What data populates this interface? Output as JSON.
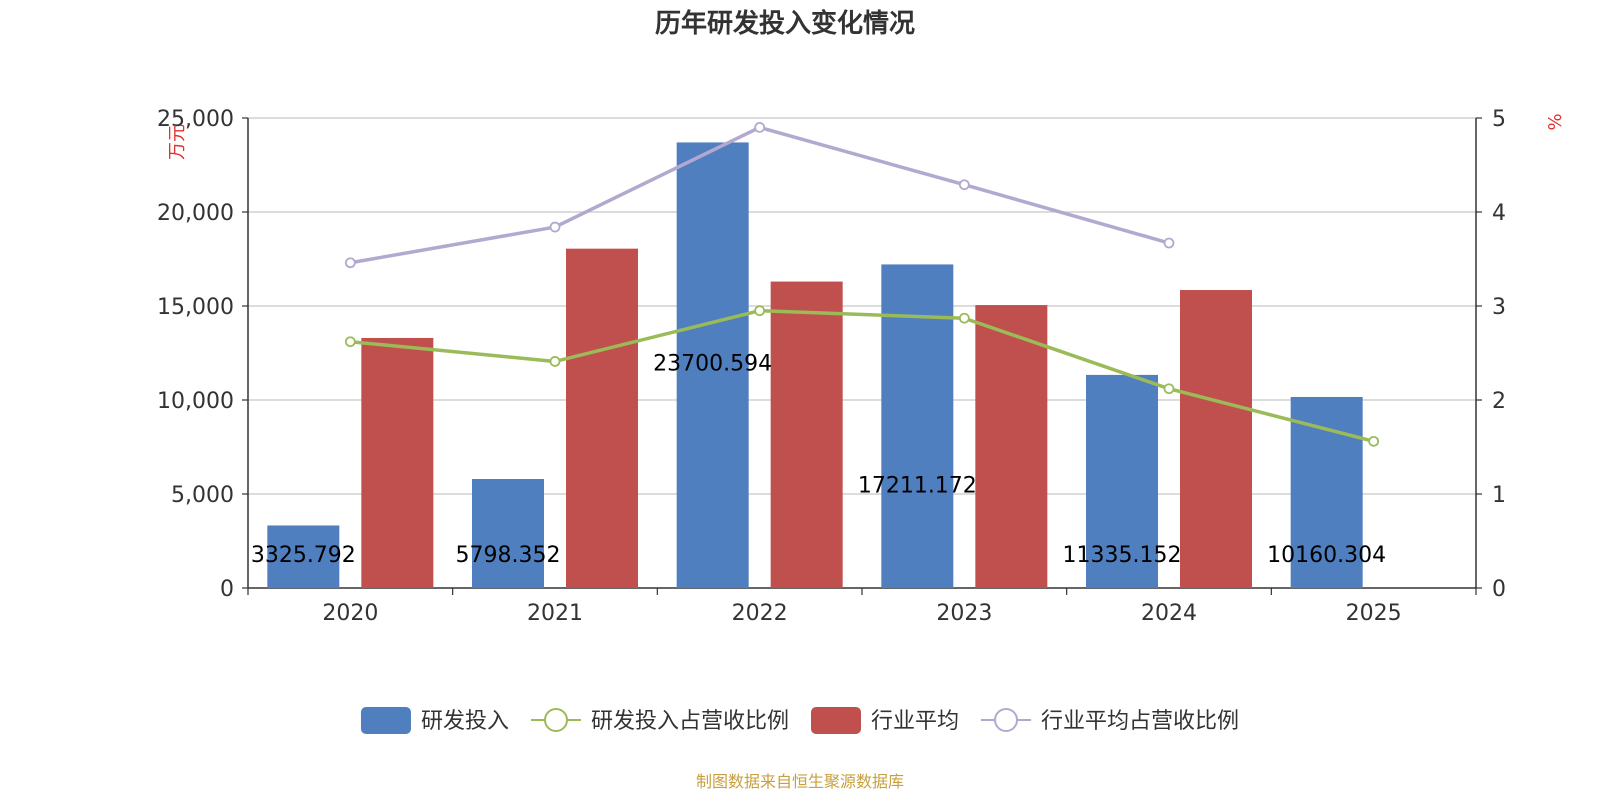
{
  "chart_data": {
    "type": "bar",
    "title": "历年研发投入变化情况",
    "categories": [
      "2020",
      "2021",
      "2022",
      "2023",
      "2024",
      "2025"
    ],
    "y_left": {
      "unit": "万元",
      "ylim": [
        0,
        25000
      ],
      "ticks": [
        0,
        5000,
        10000,
        15000,
        20000,
        25000
      ],
      "tick_labels": [
        "0",
        "5,000",
        "10,000",
        "15,000",
        "20,000",
        "25,000"
      ]
    },
    "y_right": {
      "unit": "%",
      "ylim": [
        0,
        5
      ],
      "ticks": [
        0,
        1,
        2,
        3,
        4,
        5
      ],
      "tick_labels": [
        "0",
        "1",
        "2",
        "3",
        "4",
        "5"
      ]
    },
    "series": [
      {
        "name": "研发投入",
        "type": "bar",
        "axis": "left",
        "color": "#4f7fbe",
        "values": [
          3325.792,
          5798.352,
          23700.594,
          17211.172,
          11335.152,
          10160.304
        ],
        "data_labels": [
          "3325.792",
          "5798.352",
          "23700.594",
          "17211.172",
          "11335.152",
          "10160.304"
        ]
      },
      {
        "name": "研发投入占营收比例",
        "type": "line",
        "axis": "right",
        "color": "#9bbb59",
        "values": [
          2.62,
          2.41,
          2.95,
          2.87,
          2.12,
          1.56
        ]
      },
      {
        "name": "行业平均",
        "type": "bar",
        "axis": "left",
        "color": "#c0504d",
        "values": [
          13300,
          18050,
          16300,
          15050,
          15850,
          null
        ]
      },
      {
        "name": "行业平均占营收比例",
        "type": "line",
        "axis": "right",
        "color": "#b3a8d0",
        "values": [
          3.46,
          3.84,
          4.9,
          4.29,
          3.67,
          null
        ]
      }
    ],
    "grid": true,
    "legend_position": "bottom"
  },
  "source": {
    "text": "制图数据来自恒生聚源数据库",
    "color": "#c8a040"
  }
}
